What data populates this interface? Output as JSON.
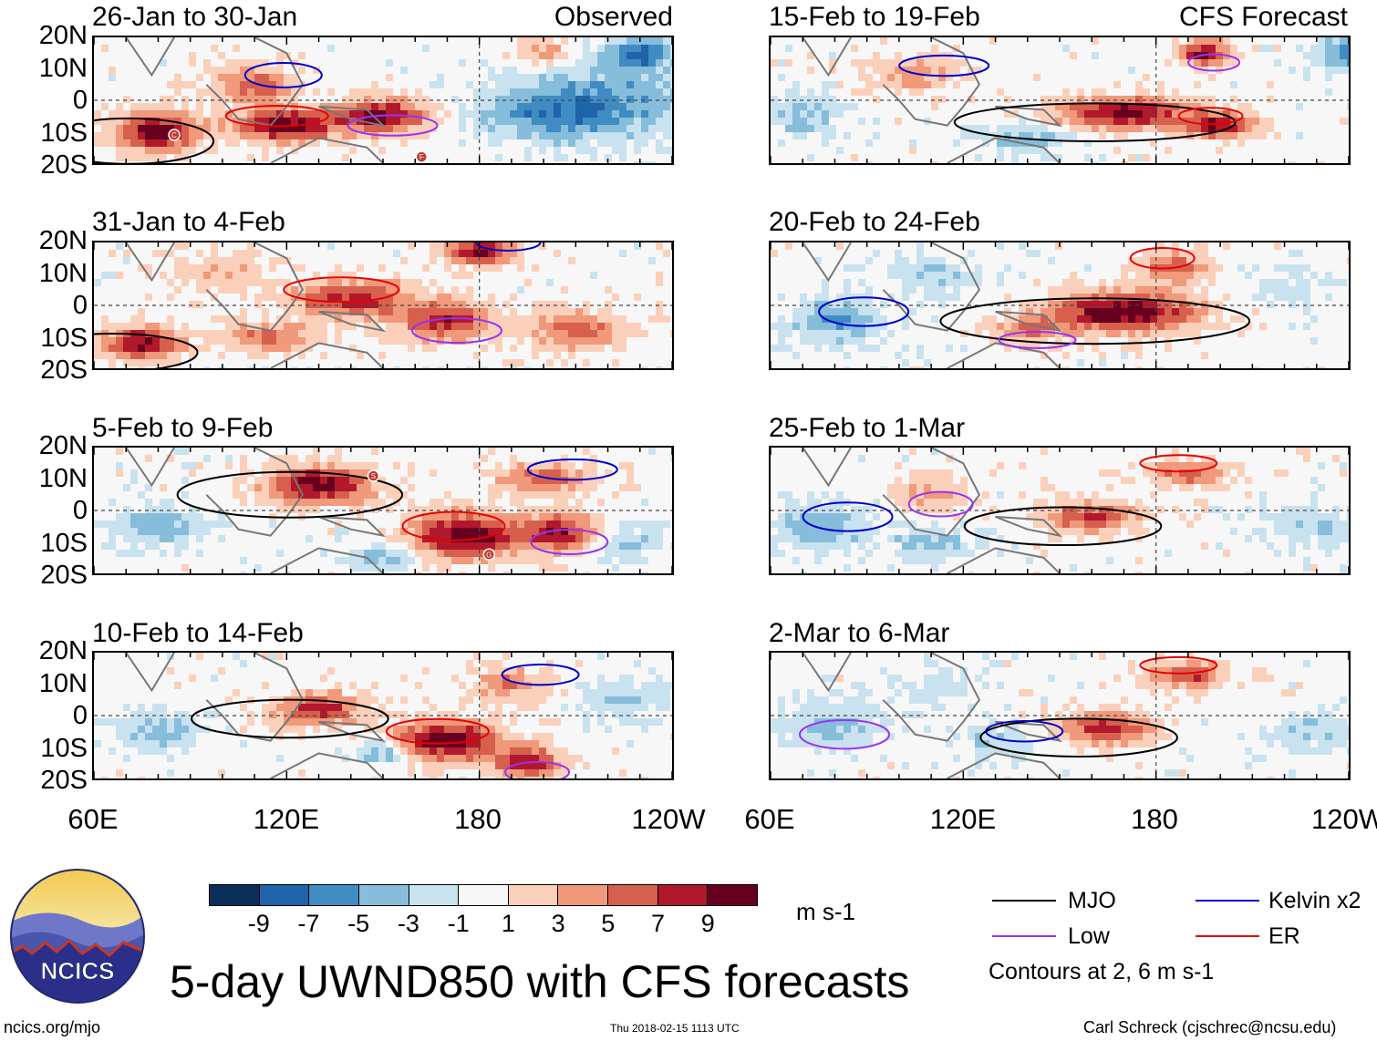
{
  "figure": {
    "title": "5-day UWND850 with CFS forecasts",
    "site": "ncics.org/mjo",
    "timestamp": "Thu 2018-02-15 1113 UTC",
    "author": "Carl Schreck (cjschrec@ncsu.edu)",
    "logo_text": "NCICS"
  },
  "chart_data": {
    "type": "heatmap",
    "variable": "850-hPa zonal wind anomaly",
    "units": "m s-1",
    "lat_ticks": [
      "20N",
      "10N",
      "0",
      "10S",
      "20S"
    ],
    "lon_ticks": [
      "60E",
      "120E",
      "180",
      "120W"
    ],
    "lat_range": [
      -20,
      20
    ],
    "lon_range": [
      60,
      240
    ],
    "colorbar": {
      "tick_labels": [
        "-9",
        "-7",
        "-5",
        "-3",
        "-1",
        "1",
        "3",
        "5",
        "7",
        "9"
      ],
      "levels": [
        -9,
        -7,
        -5,
        -3,
        -1,
        1,
        3,
        5,
        7,
        9
      ],
      "colors": [
        "#0b2d5a",
        "#1f63a8",
        "#3f8cc3",
        "#86bddb",
        "#c9e2ef",
        "#f7f7f7",
        "#fbd0bb",
        "#f0997b",
        "#d6604d",
        "#b2182b",
        "#67001f"
      ],
      "units_label": "m s-1"
    },
    "legend": [
      {
        "label": "MJO",
        "color": "#000000"
      },
      {
        "label": "Kelvin x2",
        "color": "#0000cc"
      },
      {
        "label": "Low",
        "color": "#9933ee"
      },
      {
        "label": "ER",
        "color": "#e60000"
      }
    ],
    "contour_note": "Contours at 2, 6 m s-1",
    "panels": [
      {
        "title": "26-Jan to 30-Jan",
        "label": "Observed",
        "column": "left"
      },
      {
        "title": "31-Jan to 4-Feb",
        "label": "",
        "column": "left"
      },
      {
        "title": "5-Feb to 9-Feb",
        "label": "",
        "column": "left"
      },
      {
        "title": "10-Feb to 14-Feb",
        "label": "",
        "column": "left"
      },
      {
        "title": "15-Feb to 19-Feb",
        "label": "CFS Forecast",
        "column": "right"
      },
      {
        "title": "20-Feb to 24-Feb",
        "label": "",
        "column": "right"
      },
      {
        "title": "25-Feb to 1-Mar",
        "label": "",
        "column": "right"
      },
      {
        "title": "2-Mar to 6-Mar",
        "label": "",
        "column": "right"
      }
    ],
    "storm_markers": [
      {
        "panel": 0,
        "letter": "C"
      },
      {
        "panel": 0,
        "letter": "F"
      },
      {
        "panel": 2,
        "letter": "S"
      },
      {
        "panel": 2,
        "letter": "G"
      }
    ]
  }
}
